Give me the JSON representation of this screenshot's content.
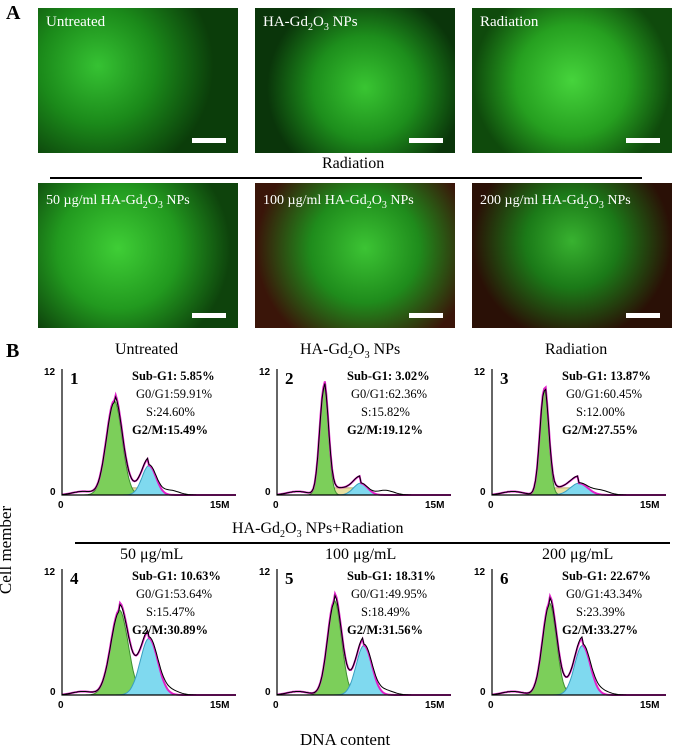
{
  "panel_a": {
    "letter": "A",
    "top_labels": [
      "Untreated",
      "HA-Gd",
      "Radiation"
    ],
    "group_label": "Radiation",
    "bottom_labels_pre": [
      "50 µg/ml HA-Gd",
      "100 µg/ml HA-Gd",
      "200 µg/ml HA-Gd"
    ],
    "gd_sub": "2",
    "o_text": "O",
    "o_sub": "3",
    "nps": " NPs"
  },
  "panel_b": {
    "letter": "B",
    "y_axis_label": "Cell member",
    "x_axis_label": "DNA content",
    "top_titles": [
      "Untreated",
      "Radiation"
    ],
    "top_title_ha": "HA-Gd",
    "group_title": "HA-Gd",
    "group_title_suffix": " NPs+Radiation",
    "bottom_titles": [
      "50 μg/mL",
      "100 μg/mL",
      "200 μg/mL"
    ],
    "y_tick_top": "12",
    "y_tick_zero": "0",
    "x_tick_zero": "0",
    "x_tick_end": "15M",
    "plots": [
      {
        "number": "1",
        "subg1": "Sub-G1: 5.85%",
        "g0g1": "G0/G1:59.91%",
        "s": "S:24.60%",
        "g2m": "G2/M:15.49%"
      },
      {
        "number": "2",
        "subg1": "Sub-G1: 3.02%",
        "g0g1": "G0/G1:62.36%",
        "s": "S:15.82%",
        "g2m": "G2/M:19.12%"
      },
      {
        "number": "3",
        "subg1": "Sub-G1: 13.87%",
        "g0g1": "G0/G1:60.45%",
        "s": "S:12.00%",
        "g2m": "G2/M:27.55%"
      },
      {
        "number": "4",
        "subg1": "Sub-G1: 10.63%",
        "g0g1": "G0/G1:53.64%",
        "s": "S:15.47%",
        "g2m": "G2/M:30.89%"
      },
      {
        "number": "5",
        "subg1": "Sub-G1: 18.31%",
        "g0g1": "G0/G1:49.95%",
        "s": "S:18.49%",
        "g2m": "G2/M:31.56%"
      },
      {
        "number": "6",
        "subg1": "Sub-G1: 22.67%",
        "g0g1": "G0/G1:43.34%",
        "s": "S:23.39%",
        "g2m": "G2/M:33.27%"
      }
    ],
    "colors": {
      "g1": "#7ccf5a",
      "g2": "#7fd9ef",
      "s": "#e8e0a0",
      "fit": "#e020c8",
      "trace": "#000000"
    }
  }
}
